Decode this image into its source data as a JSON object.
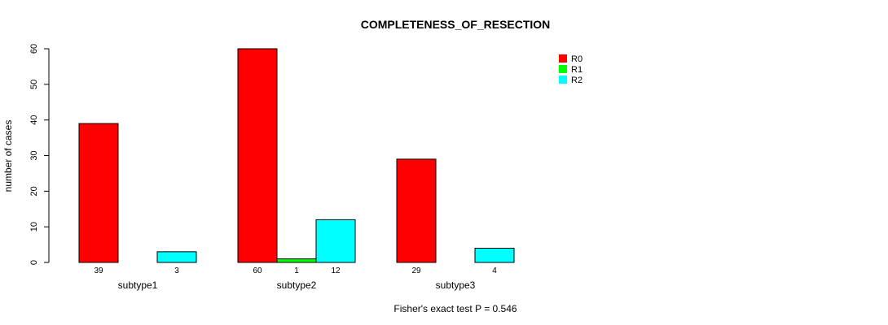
{
  "chart_data": {
    "type": "bar",
    "title": "COMPLETENESS_OF_RESECTION",
    "xlabel": "",
    "ylabel": "number of cases",
    "ylim": [
      0,
      60
    ],
    "yticks": [
      0,
      10,
      20,
      30,
      40,
      50,
      60
    ],
    "categories": [
      "subtype1",
      "subtype2",
      "subtype3"
    ],
    "series": [
      {
        "name": "R0",
        "color": "#ff0000",
        "values": [
          39,
          60,
          29
        ]
      },
      {
        "name": "R1",
        "color": "#00ff00",
        "values": [
          0,
          1,
          0
        ]
      },
      {
        "name": "R2",
        "color": "#00ffff",
        "values": [
          3,
          12,
          4
        ]
      }
    ],
    "bar_labels": [
      [
        "39",
        "",
        "3"
      ],
      [
        "60",
        "1",
        "12"
      ],
      [
        "29",
        "",
        "4"
      ]
    ],
    "legend_position": "top-right",
    "footnote": "Fisher's exact test P = 0.546"
  }
}
